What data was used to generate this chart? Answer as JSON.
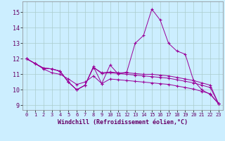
{
  "xlabel": "Windchill (Refroidissement éolien,°C)",
  "background_color": "#cceeff",
  "grid_color": "#aacccc",
  "line_color": "#990099",
  "xlim": [
    -0.5,
    23.5
  ],
  "ylim": [
    8.7,
    15.7
  ],
  "yticks": [
    9,
    10,
    11,
    12,
    13,
    14,
    15
  ],
  "xticks": [
    0,
    1,
    2,
    3,
    4,
    5,
    6,
    7,
    8,
    9,
    10,
    11,
    12,
    13,
    14,
    15,
    16,
    17,
    18,
    19,
    20,
    21,
    22,
    23
  ],
  "line1": [
    [
      0,
      12.0
    ],
    [
      1,
      11.7
    ],
    [
      2,
      11.4
    ],
    [
      3,
      11.35
    ],
    [
      4,
      11.2
    ],
    [
      5,
      10.5
    ],
    [
      6,
      10.0
    ],
    [
      7,
      10.3
    ],
    [
      8,
      11.5
    ],
    [
      9,
      10.4
    ],
    [
      10,
      11.6
    ],
    [
      11,
      11.0
    ],
    [
      12,
      11.15
    ],
    [
      13,
      13.0
    ],
    [
      14,
      13.5
    ],
    [
      15,
      15.2
    ],
    [
      16,
      14.5
    ],
    [
      17,
      13.0
    ],
    [
      18,
      12.5
    ],
    [
      19,
      12.3
    ],
    [
      20,
      10.6
    ],
    [
      21,
      10.0
    ],
    [
      22,
      9.7
    ],
    [
      23,
      9.1
    ]
  ],
  "line2": [
    [
      0,
      12.0
    ],
    [
      1,
      11.7
    ],
    [
      2,
      11.4
    ],
    [
      3,
      11.35
    ],
    [
      4,
      11.2
    ],
    [
      5,
      10.5
    ],
    [
      6,
      10.0
    ],
    [
      7,
      10.3
    ],
    [
      8,
      11.45
    ],
    [
      9,
      11.1
    ],
    [
      10,
      11.15
    ],
    [
      11,
      11.1
    ],
    [
      12,
      11.1
    ],
    [
      13,
      11.05
    ],
    [
      14,
      11.0
    ],
    [
      15,
      11.0
    ],
    [
      16,
      10.95
    ],
    [
      17,
      10.9
    ],
    [
      18,
      10.8
    ],
    [
      19,
      10.7
    ],
    [
      20,
      10.6
    ],
    [
      21,
      10.45
    ],
    [
      22,
      10.3
    ],
    [
      23,
      9.1
    ]
  ],
  "line3": [
    [
      0,
      12.0
    ],
    [
      1,
      11.7
    ],
    [
      2,
      11.4
    ],
    [
      3,
      11.35
    ],
    [
      4,
      11.2
    ],
    [
      5,
      10.5
    ],
    [
      6,
      10.0
    ],
    [
      7,
      10.3
    ],
    [
      8,
      11.45
    ],
    [
      9,
      11.05
    ],
    [
      10,
      11.1
    ],
    [
      11,
      11.05
    ],
    [
      12,
      11.0
    ],
    [
      13,
      10.95
    ],
    [
      14,
      10.9
    ],
    [
      15,
      10.85
    ],
    [
      16,
      10.8
    ],
    [
      17,
      10.75
    ],
    [
      18,
      10.65
    ],
    [
      19,
      10.55
    ],
    [
      20,
      10.45
    ],
    [
      21,
      10.3
    ],
    [
      22,
      10.15
    ],
    [
      23,
      9.1
    ]
  ],
  "line4": [
    [
      0,
      12.0
    ],
    [
      1,
      11.7
    ],
    [
      2,
      11.35
    ],
    [
      3,
      11.1
    ],
    [
      4,
      11.0
    ],
    [
      5,
      10.7
    ],
    [
      6,
      10.35
    ],
    [
      7,
      10.5
    ],
    [
      8,
      10.9
    ],
    [
      9,
      10.4
    ],
    [
      10,
      10.7
    ],
    [
      11,
      10.65
    ],
    [
      12,
      10.6
    ],
    [
      13,
      10.55
    ],
    [
      14,
      10.5
    ],
    [
      15,
      10.45
    ],
    [
      16,
      10.4
    ],
    [
      17,
      10.35
    ],
    [
      18,
      10.25
    ],
    [
      19,
      10.15
    ],
    [
      20,
      10.05
    ],
    [
      21,
      9.9
    ],
    [
      22,
      9.75
    ],
    [
      23,
      9.1
    ]
  ]
}
